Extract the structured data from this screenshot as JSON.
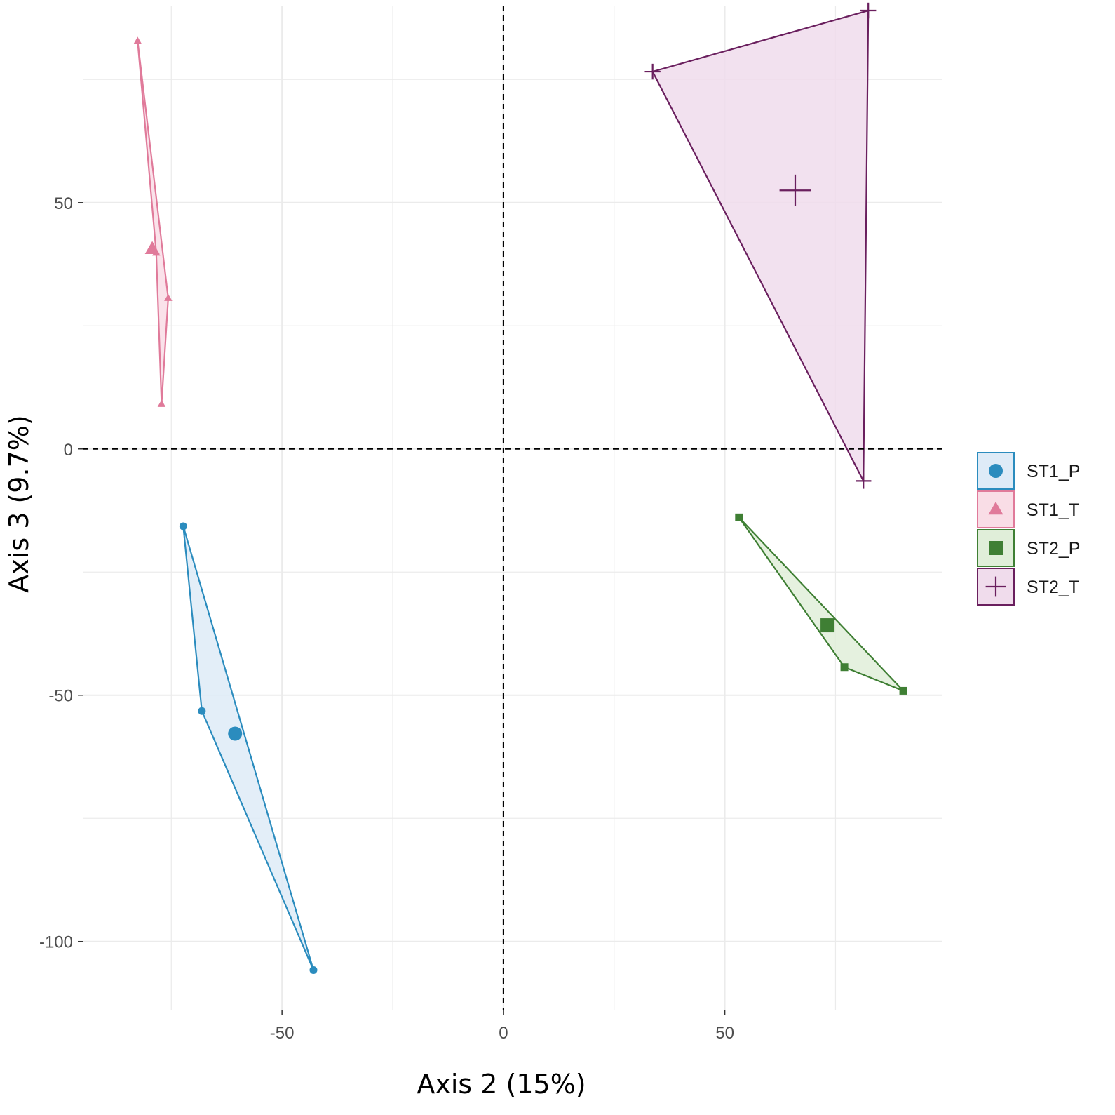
{
  "chart_data": {
    "type": "scatter",
    "xlabel": "Axis 2 (15%)",
    "ylabel": "Axis 3 (9.7%)",
    "xlim": [
      -95,
      99
    ],
    "ylim": [
      -114,
      90
    ],
    "x_ticks": [
      -50,
      0,
      50
    ],
    "y_ticks": [
      50,
      0,
      -50,
      -100
    ],
    "x_tick_labels": [
      "-50",
      "0",
      "50"
    ],
    "y_tick_labels": [
      "50",
      "0",
      "-50",
      "-100"
    ],
    "grid": true,
    "reference_lines": {
      "x": 0,
      "y": 0,
      "style": "dashed"
    },
    "legend_position": "right",
    "series": [
      {
        "name": "ST1_P",
        "marker": "circle",
        "color": "#2b8cbe",
        "fill": "#deebf7",
        "points": [
          [
            -72.3,
            -15.7
          ],
          [
            -68.1,
            -53.2
          ],
          [
            -42.9,
            -105.8
          ]
        ],
        "centroid": [
          -60.6,
          -57.8
        ]
      },
      {
        "name": "ST1_T",
        "marker": "triangle",
        "color": "#e07a9a",
        "fill": "#f9dde6",
        "points": [
          [
            -82.6,
            82.8
          ],
          [
            -78.4,
            39.8
          ],
          [
            -77.2,
            9.1
          ],
          [
            -75.7,
            30.6
          ]
        ],
        "centroid": [
          -79.3,
          40.6
        ]
      },
      {
        "name": "ST2_P",
        "marker": "square",
        "color": "#3f7f34",
        "fill": "#e0eed9",
        "points": [
          [
            53.2,
            -13.9
          ],
          [
            77.0,
            -44.3
          ],
          [
            90.3,
            -49.1
          ]
        ],
        "centroid": [
          73.2,
          -35.8
        ]
      },
      {
        "name": "ST2_T",
        "marker": "cross",
        "color": "#6a1f5e",
        "fill": "#f0dcec",
        "points": [
          [
            33.7,
            76.6
          ],
          [
            82.4,
            89.0
          ],
          [
            81.3,
            -6.5
          ]
        ],
        "centroid": [
          65.9,
          52.5
        ]
      }
    ]
  }
}
